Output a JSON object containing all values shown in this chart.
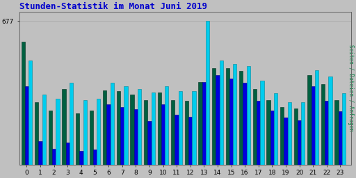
{
  "title": "Stunden-Statistik im Monat Juni 2019",
  "title_color": "#0000cc",
  "ylabel_right": "Seiten / Dateien / Anfragen",
  "ylabel_right_color": "#008040",
  "background_color": "#c0c0c0",
  "plot_bg_color": "#c0c0c0",
  "ytick_label": "677",
  "hours": [
    0,
    1,
    2,
    3,
    4,
    5,
    6,
    7,
    8,
    9,
    10,
    11,
    12,
    13,
    14,
    15,
    16,
    17,
    18,
    19,
    20,
    21,
    22,
    23
  ],
  "seiten": [
    580,
    295,
    255,
    355,
    240,
    255,
    350,
    345,
    330,
    305,
    340,
    305,
    300,
    390,
    455,
    455,
    440,
    355,
    305,
    270,
    265,
    420,
    380,
    305
  ],
  "dateien": [
    370,
    110,
    75,
    105,
    65,
    70,
    285,
    270,
    260,
    205,
    285,
    235,
    225,
    390,
    420,
    405,
    385,
    300,
    255,
    220,
    210,
    370,
    300,
    250
  ],
  "anfragen": [
    490,
    330,
    310,
    385,
    305,
    310,
    385,
    370,
    355,
    340,
    370,
    345,
    345,
    677,
    490,
    475,
    465,
    395,
    335,
    295,
    295,
    445,
    415,
    335
  ],
  "color_seiten": "#006040",
  "color_dateien": "#0000dd",
  "color_anfragen": "#00ccee",
  "bar_width": 0.27,
  "ylim_max": 720,
  "ylim_min": 0,
  "figsize": [
    5.12,
    2.56
  ],
  "dpi": 100
}
